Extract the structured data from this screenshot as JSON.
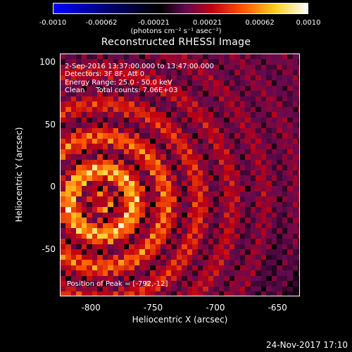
{
  "chart_data": {
    "type": "heatmap",
    "title": "Reconstructed RHESSI Image",
    "xlabel": "Heliocentric X (arcsec)",
    "ylabel": "Heliocentric Y (arcsec)",
    "xlim": [
      -825,
      -632
    ],
    "ylim": [
      -88,
      107
    ],
    "x_ticks": [
      "-800",
      "-750",
      "-700",
      "-650"
    ],
    "y_ticks": [
      "100",
      "50",
      "0",
      "-50"
    ],
    "colorbar": {
      "ticks": [
        "-0.0010",
        "-0.00062",
        "-0.00021",
        "0.00021",
        "0.00062",
        "0.0010"
      ],
      "range": [
        -0.001,
        0.001
      ],
      "units": "(photons cm⁻² s⁻¹ asec⁻²)"
    },
    "annotations": [
      "2-Sep-2016 13:37:00.000 to 13:47:00.000",
      "Detectors: 3F 8F, Att 0",
      "Energy Range: 25.0 - 50.0 keV",
      "Clean     Total counts: 7.06E+03"
    ],
    "peak_label": "Position of Peak = [-792,-12]",
    "peak": [
      -792,
      -12
    ]
  },
  "footer": {
    "timestamp": "24-Nov-2017 17:10"
  },
  "colors": {
    "background": "#000000",
    "foreground": "#ffffff"
  }
}
